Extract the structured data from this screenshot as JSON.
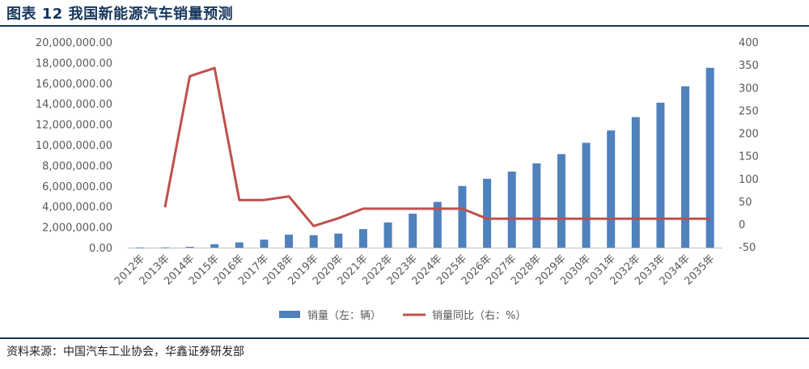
{
  "header": {
    "title": "图表 12 我国新能源汽车销量预测"
  },
  "footer": {
    "source": "资料来源：中国汽车工业协会，华鑫证券研发部"
  },
  "colors": {
    "bar": "#4f81bd",
    "line": "#c0504d",
    "title": "#16365c",
    "axis_text": "#595959"
  },
  "chart_data": {
    "type": "bar",
    "categories": [
      "2012年",
      "2013年",
      "2014年",
      "2015年",
      "2016年",
      "2017年",
      "2018年",
      "2019年",
      "2020年",
      "2021年",
      "2022年",
      "2023年",
      "2024年",
      "2025年",
      "2026年",
      "2027年",
      "2028年",
      "2029年",
      "2030年",
      "2031年",
      "2032年",
      "2033年",
      "2034年",
      "2035年"
    ],
    "series": [
      {
        "name": "销量（左：辆）",
        "type": "bar",
        "axis": "left",
        "values": [
          12800,
          17600,
          74800,
          331000,
          507000,
          777000,
          1256000,
          1206000,
          1367000,
          1800000,
          2450000,
          3300000,
          4450000,
          6000000,
          6700000,
          7400000,
          8200000,
          9100000,
          10200000,
          11400000,
          12700000,
          14100000,
          15700000,
          17500000
        ]
      },
      {
        "name": "销量同比（右：%）",
        "type": "line",
        "axis": "right",
        "values": [
          null,
          37,
          325,
          343,
          53,
          53,
          61,
          -4,
          13,
          34,
          34,
          34,
          34,
          34,
          12,
          12,
          12,
          12,
          12,
          12,
          12,
          12,
          12,
          12
        ]
      }
    ],
    "y_left": {
      "min": 0,
      "max": 20000000,
      "step": 2000000,
      "tick_labels": [
        "0.00",
        "2,000,000.00",
        "4,000,000.00",
        "6,000,000.00",
        "8,000,000.00",
        "10,000,000.00",
        "12,000,000.00",
        "14,000,000.00",
        "16,000,000.00",
        "18,000,000.00",
        "20,000,000.00"
      ]
    },
    "y_right": {
      "min": -50,
      "max": 400,
      "step": 50,
      "tick_labels": [
        "-50",
        "0",
        "50",
        "100",
        "150",
        "200",
        "250",
        "300",
        "350",
        "400"
      ]
    },
    "legend_position": "bottom",
    "grid": false
  }
}
